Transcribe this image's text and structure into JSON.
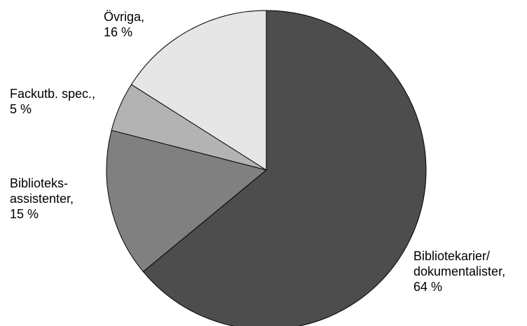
{
  "chart_data": {
    "type": "pie",
    "title": "",
    "start_angle_deg": 0,
    "direction": "clockwise",
    "slices": [
      {
        "label_lines": [
          "Bibliotekarier/",
          "dokumentalister,",
          "64 %"
        ],
        "value": 64,
        "color": "#4d4d4d"
      },
      {
        "label_lines": [
          "Biblioteks-",
          "assistenter,",
          "15 %"
        ],
        "value": 15,
        "color": "#808080"
      },
      {
        "label_lines": [
          "Fackutb. spec.,",
          "5 %"
        ],
        "value": 5,
        "color": "#b3b3b3"
      },
      {
        "label_lines": [
          "Övriga,",
          "16 %"
        ],
        "value": 16,
        "color": "#e6e6e6"
      }
    ]
  }
}
